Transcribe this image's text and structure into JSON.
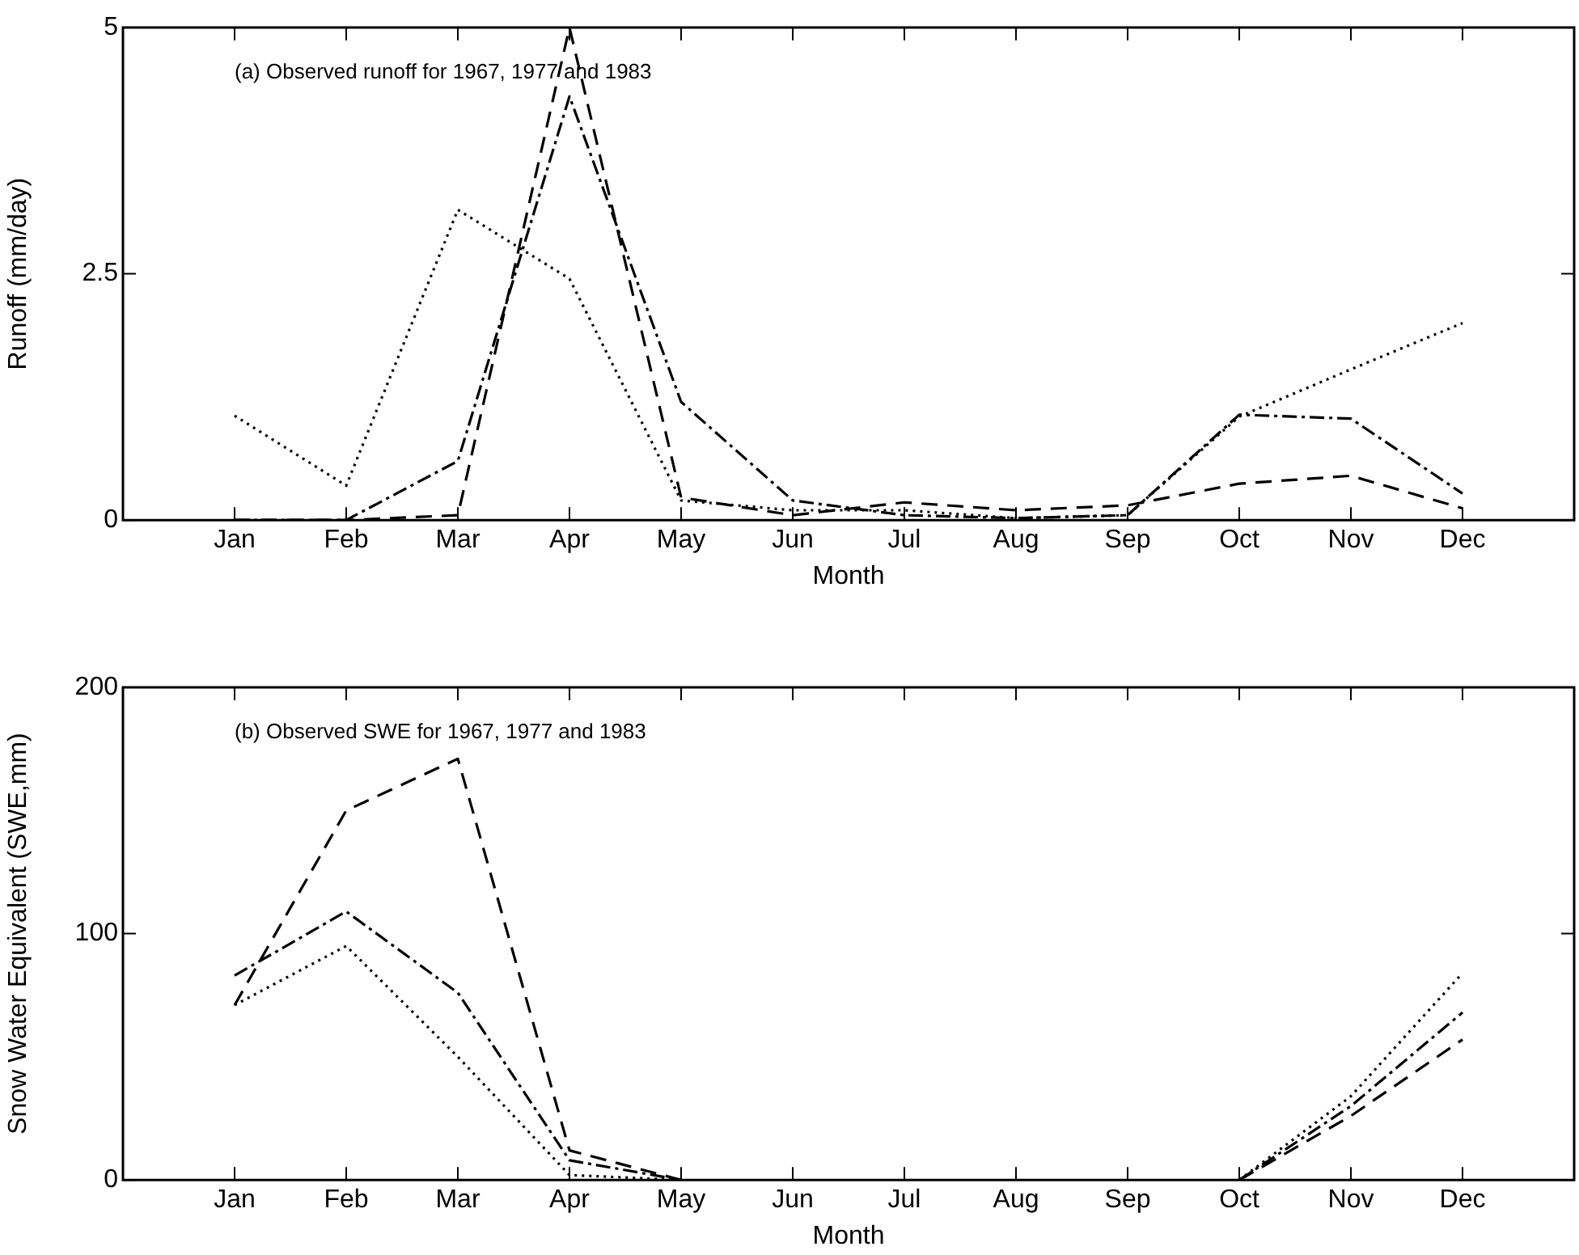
{
  "chart_data": [
    {
      "type": "line",
      "annotations": [
        "(a) Observed runoff for 1967, 1977 and 1983"
      ],
      "xlabel": "Month",
      "ylabel": "Runoff (mm/day)",
      "categories": [
        "Jan",
        "Feb",
        "Mar",
        "Apr",
        "May",
        "Jun",
        "Jul",
        "Aug",
        "Sep",
        "Oct",
        "Nov",
        "Dec"
      ],
      "ylim": [
        0,
        5
      ],
      "yticks": [
        0,
        2.5,
        5
      ],
      "grid": false,
      "legend": false,
      "marker": "none",
      "series": [
        {
          "color": "#000000",
          "line_style": "dotted",
          "values": [
            1.06,
            0.35,
            3.15,
            2.45,
            0.2,
            0.1,
            0.1,
            0.02,
            0.05,
            1.05,
            1.53,
            2.0
          ]
        },
        {
          "color": "#000000",
          "line_style": "dashed",
          "values": [
            0,
            0,
            0.05,
            5.0,
            0.23,
            0.05,
            0.18,
            0.1,
            0.15,
            0.37,
            0.45,
            0.12
          ]
        },
        {
          "color": "#000000",
          "line_style": "dashdot",
          "values": [
            0,
            0,
            0.6,
            4.3,
            1.2,
            0.2,
            0.05,
            0.02,
            0.05,
            1.07,
            1.03,
            0.27
          ]
        }
      ]
    },
    {
      "type": "line",
      "annotations": [
        "(b) Observed SWE for 1967, 1977 and 1983"
      ],
      "xlabel": "Month",
      "ylabel": "Snow Water Equivalent (SWE,mm)",
      "categories": [
        "Jan",
        "Feb",
        "Mar",
        "Apr",
        "May",
        "Jun",
        "Jul",
        "Aug",
        "Sep",
        "Oct",
        "Nov",
        "Dec"
      ],
      "ylim": [
        0,
        200
      ],
      "yticks": [
        0,
        100,
        200
      ],
      "grid": false,
      "legend": false,
      "marker": "none",
      "series": [
        {
          "color": "#000000",
          "line_style": "dotted",
          "values": [
            71,
            95,
            50,
            2,
            0,
            null,
            null,
            null,
            null,
            0,
            34,
            84
          ]
        },
        {
          "color": "#000000",
          "line_style": "dashed",
          "values": [
            71,
            150,
            171,
            12,
            0,
            null,
            null,
            null,
            null,
            0,
            26,
            57
          ]
        },
        {
          "color": "#000000",
          "line_style": "dashdot",
          "values": [
            83,
            109,
            76,
            8,
            0,
            null,
            null,
            null,
            null,
            0,
            30,
            68
          ]
        }
      ]
    }
  ]
}
